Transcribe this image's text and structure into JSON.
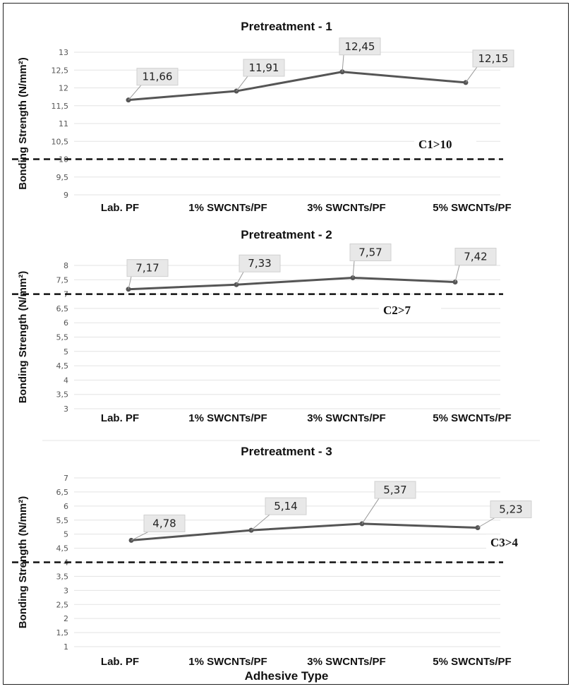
{
  "chart_data": [
    {
      "type": "line",
      "title": "Pretreatment - 1",
      "ylabel": "Bonding Strength (N/mm²)",
      "xlabel": "",
      "categories": [
        "Lab. PF",
        "1% SWCNTs/PF",
        "3% SWCNTs/PF",
        "5% SWCNTs/PF"
      ],
      "values": [
        11.66,
        11.91,
        12.45,
        12.15
      ],
      "data_labels": [
        "11,66",
        "11,91",
        "12,45",
        "12,15"
      ],
      "ylim": [
        9,
        13
      ],
      "yticks": [
        "9",
        "9,5",
        "10",
        "10,5",
        "11",
        "11,5",
        "12",
        "12,5",
        "13"
      ],
      "threshold": {
        "value": 10,
        "label": "C1>10"
      },
      "grid": true
    },
    {
      "type": "line",
      "title": "Pretreatment - 2",
      "ylabel": "Bonding Strength (N/mm²)",
      "xlabel": "",
      "categories": [
        "Lab. PF",
        "1% SWCNTs/PF",
        "3% SWCNTs/PF",
        "5% SWCNTs/PF"
      ],
      "values": [
        7.17,
        7.33,
        7.57,
        7.42
      ],
      "data_labels": [
        "7,17",
        "7,33",
        "7,57",
        "7,42"
      ],
      "ylim": [
        3,
        8
      ],
      "yticks": [
        "3",
        "3,5",
        "4",
        "4,5",
        "5",
        "5,5",
        "6",
        "6,5",
        "7",
        "7,5",
        "8"
      ],
      "threshold": {
        "value": 7,
        "label": "C2>7"
      },
      "grid": true
    },
    {
      "type": "line",
      "title": "Pretreatment - 3",
      "ylabel": "Bonding Strength (N/mm²)",
      "xlabel": "Adhesive Type",
      "categories": [
        "Lab. PF",
        "1% SWCNTs/PF",
        "3% SWCNTs/PF",
        "5% SWCNTs/PF"
      ],
      "values": [
        4.78,
        5.14,
        5.37,
        5.23
      ],
      "data_labels": [
        "4,78",
        "5,14",
        "5,37",
        "5,23"
      ],
      "ylim": [
        1,
        7
      ],
      "yticks": [
        "1",
        "1,5",
        "2",
        "2,5",
        "3",
        "3,5",
        "4",
        "4,5",
        "5",
        "5,5",
        "6",
        "6,5",
        "7"
      ],
      "threshold": {
        "value": 4,
        "label": "C3>4"
      },
      "grid": true
    }
  ],
  "colors": {
    "line": "#555555",
    "grid": "#e3e3e3",
    "label_box": "#e8e8e8",
    "threshold": "#111111"
  }
}
